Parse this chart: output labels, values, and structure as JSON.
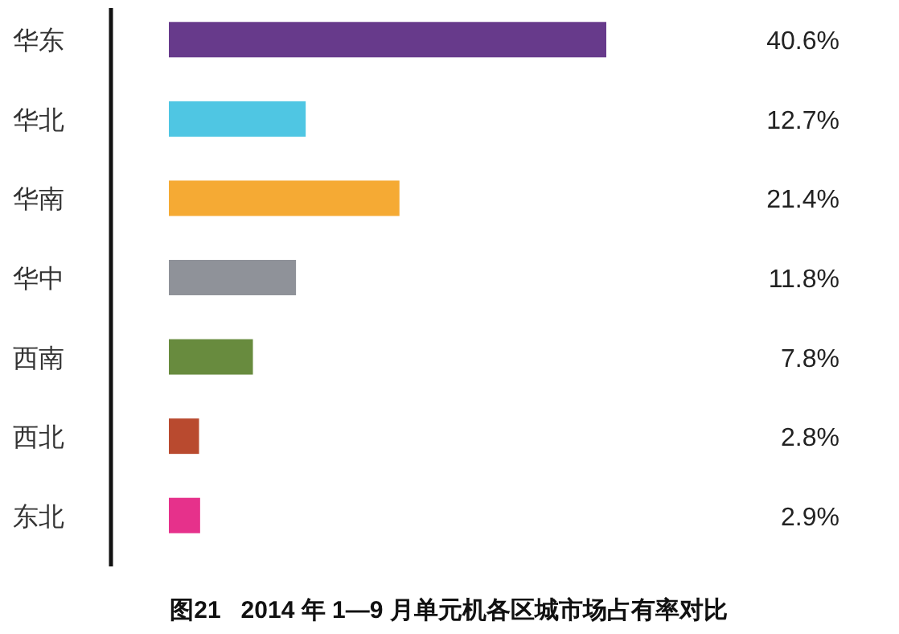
{
  "chart_data": {
    "type": "bar",
    "orientation": "horizontal",
    "title": "图21   2014 年 1—9 月单元机各区城市场占有率对比",
    "categories": [
      "华东",
      "华北",
      "华南",
      "华中",
      "西南",
      "西北",
      "东北"
    ],
    "values": [
      40.6,
      12.7,
      21.4,
      11.8,
      7.8,
      2.8,
      2.9
    ],
    "colors": [
      "#673a8b",
      "#4fc6e3",
      "#f5aa34",
      "#8f9299",
      "#688b3e",
      "#b94a2f",
      "#e6318b"
    ],
    "value_labels": [
      "40.6%",
      "12.7%",
      "21.4%",
      "11.8%",
      "7.8%",
      "2.8%",
      "2.9%"
    ]
  }
}
